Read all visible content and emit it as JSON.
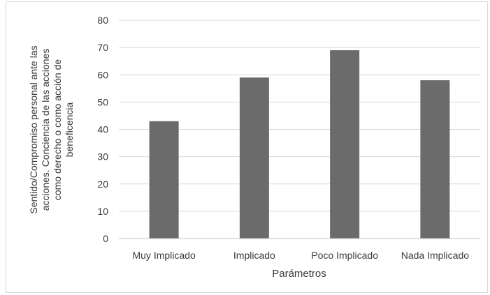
{
  "chart_data": {
    "type": "bar",
    "categories": [
      "Muy Implicado",
      "Implicado",
      "Poco Implicado",
      "Nada Implicado"
    ],
    "values": [
      43,
      59,
      69,
      58
    ],
    "title": "",
    "xlabel": "Parámetros",
    "ylabel_lines": [
      "Sentido/Compromiso personal ante las",
      "acciones. Conciencia de las acciones",
      "como derecho o como acción de",
      "beneficencia"
    ],
    "ylim": [
      0,
      80
    ],
    "yticks": [
      0,
      10,
      20,
      30,
      40,
      50,
      60,
      70,
      80
    ],
    "grid": true,
    "legend": "none",
    "bar_color": "#6b6b6b",
    "grid_color": "#d9d9d9",
    "axis_color": "#bfbfbf",
    "text_color": "#3a3a3a"
  }
}
